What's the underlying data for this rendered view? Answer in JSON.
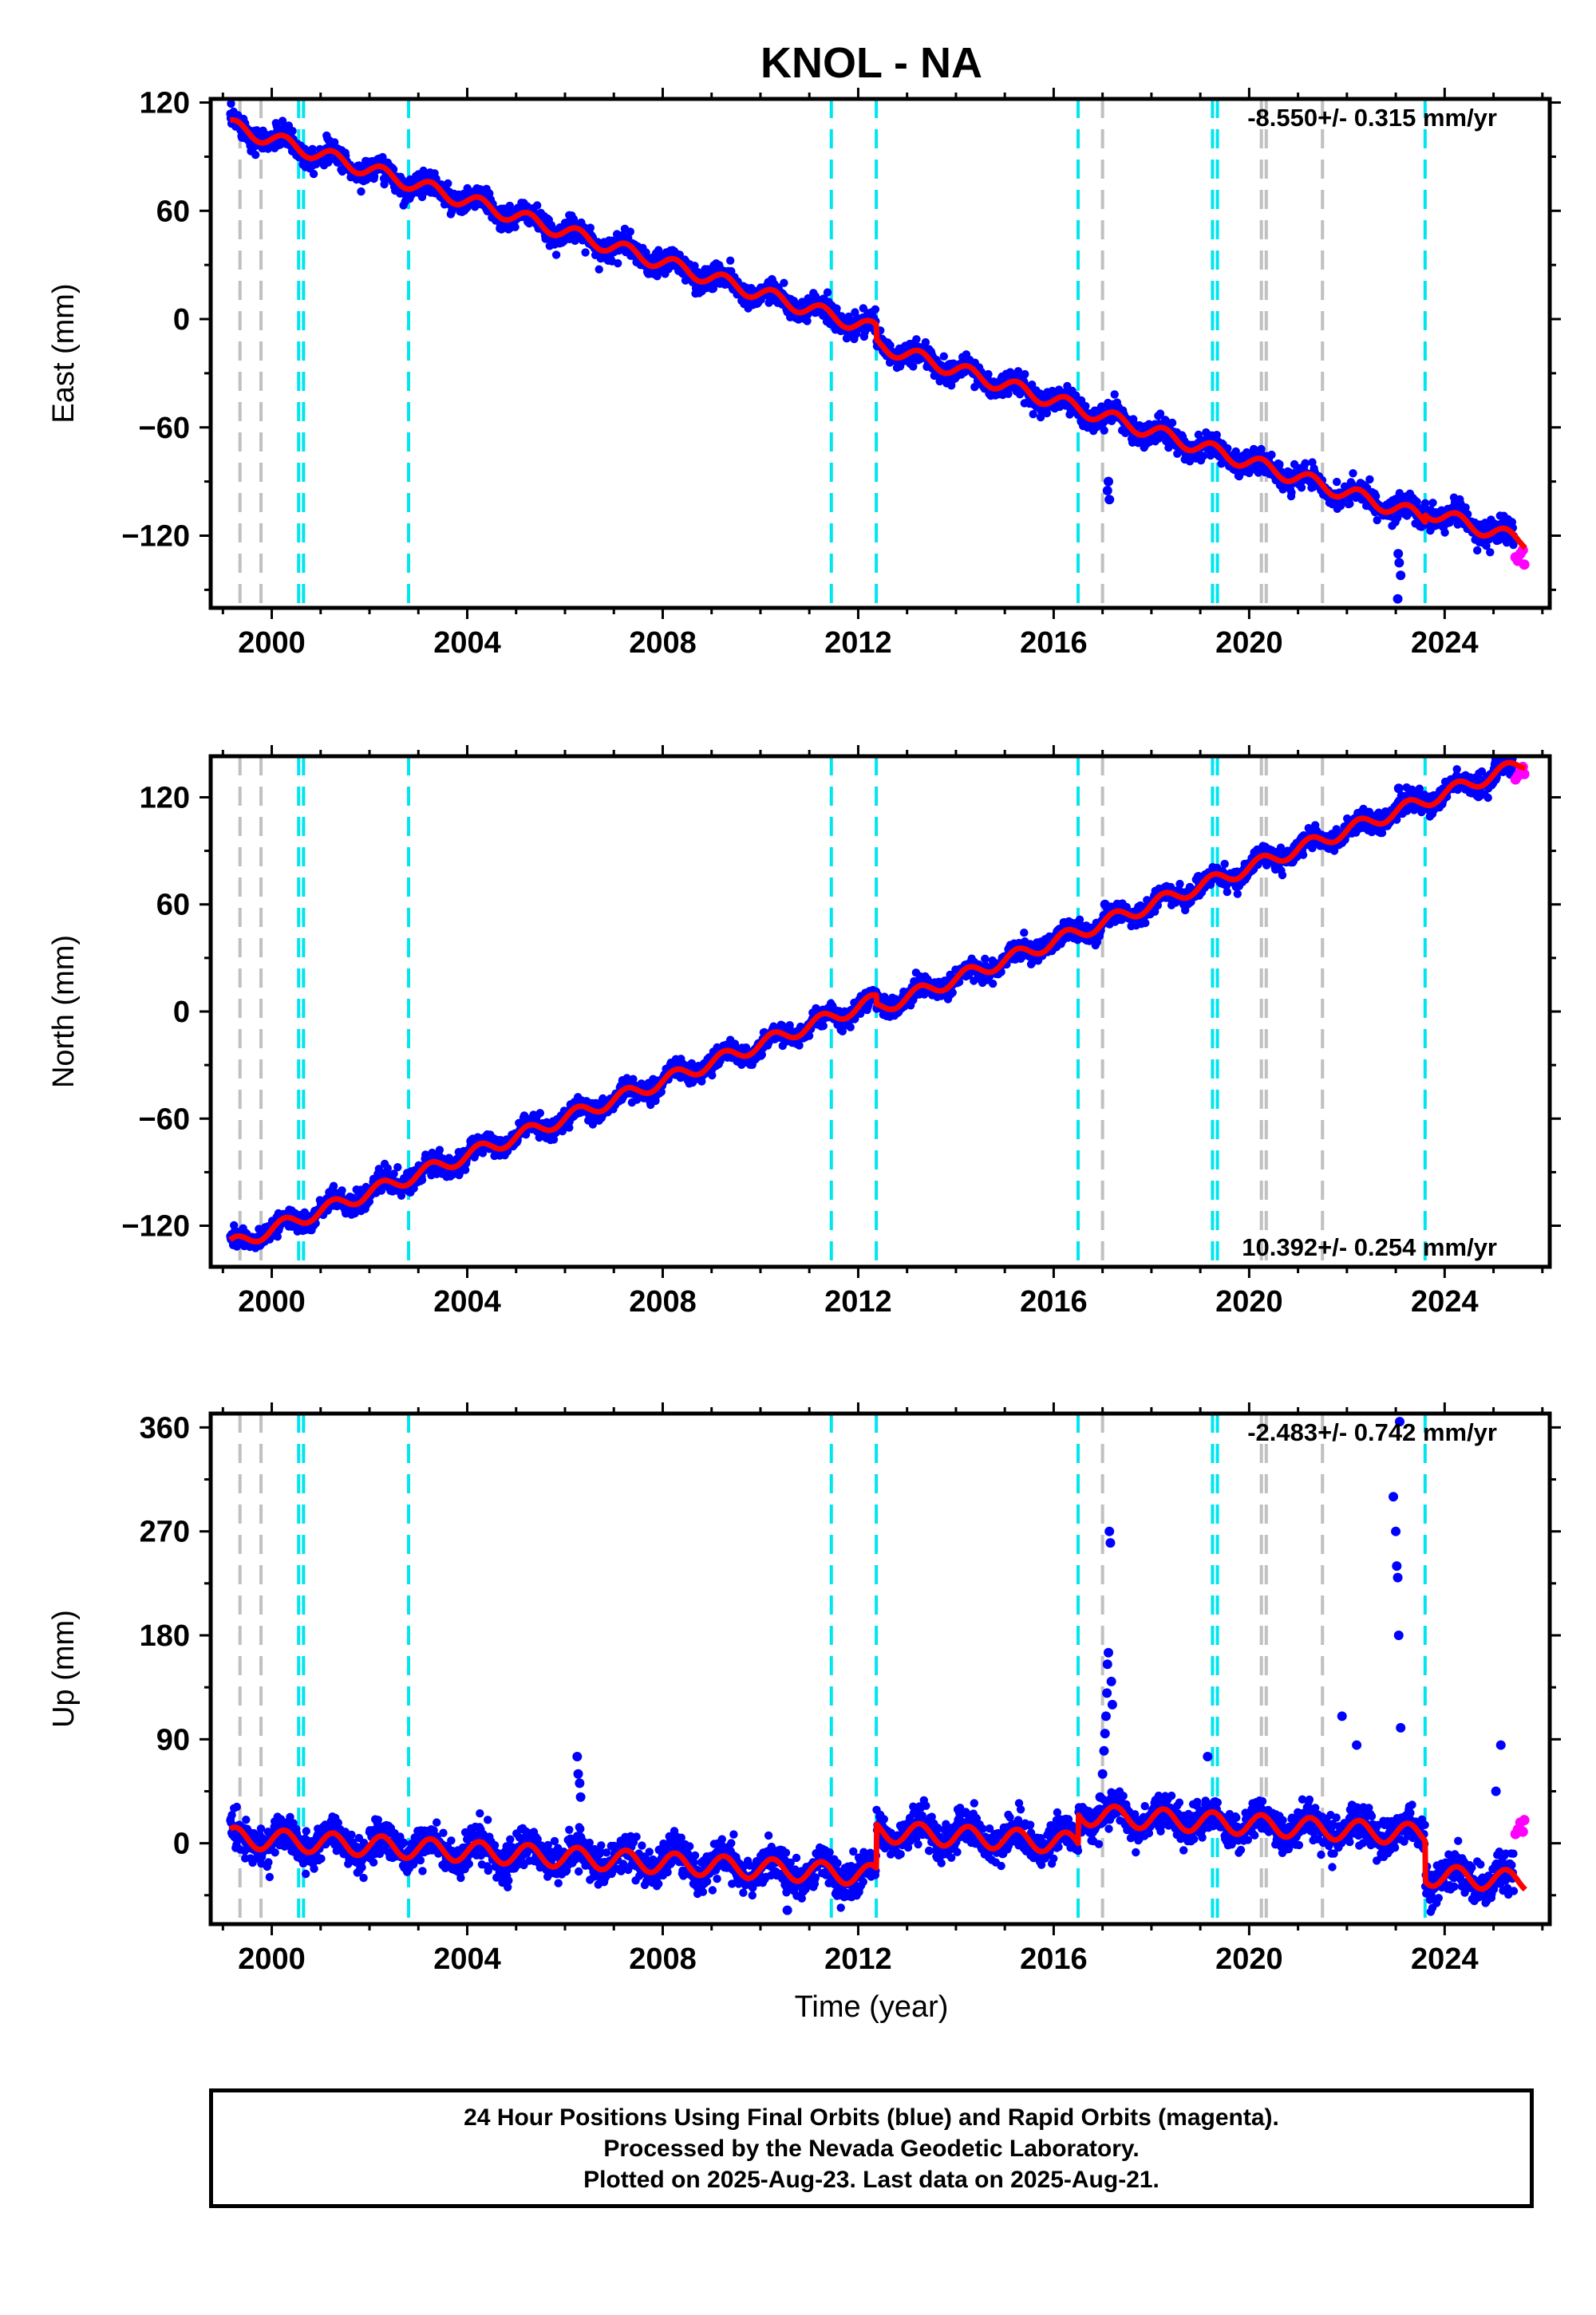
{
  "title": "KNOL - NA",
  "x_axis": {
    "label": "Time (year)",
    "range": [
      1998.75,
      2026.15
    ],
    "ticks": [
      2000,
      2004,
      2008,
      2012,
      2016,
      2020,
      2024
    ],
    "tick_labels": [
      "2000",
      "2004",
      "2008",
      "2012",
      "2016",
      "2020",
      "2024"
    ]
  },
  "event_lines": {
    "gray": [
      1999.35,
      1999.78,
      2017.0,
      2020.25,
      2020.35,
      2021.5
    ],
    "cyan": [
      2000.55,
      2000.65,
      2002.8,
      2011.45,
      2012.37,
      2016.5,
      2019.25,
      2019.35,
      2023.6
    ]
  },
  "colors": {
    "final_orbits": "#0000ff",
    "rapid_orbits": "#ff00ff",
    "model": "#ff0000",
    "gray_lines": "#c0c0c0",
    "cyan_lines": "#00e5ee"
  },
  "chart_data": [
    {
      "type": "scatter",
      "component": "east",
      "ylabel": "East (mm)",
      "ylim": [
        -160,
        122
      ],
      "yticks": [
        -120,
        -60,
        0,
        60,
        120
      ],
      "ytick_labels": [
        "-120",
        "-60",
        "0",
        "60",
        "120"
      ],
      "rate_text": "-8.550+/- 0.315 mm/yr",
      "rate_position": "top-right",
      "start_year": 1999.15,
      "end_year": 2025.65,
      "trend_start": 107,
      "trend_rate": -8.55,
      "seasonal_amplitude": 4.0,
      "noise": 3.2,
      "offsets": [
        {
          "year": 2012.37,
          "value": -8
        },
        {
          "year": 2023.6,
          "value": 4
        }
      ],
      "outliers": [
        [
          2017.1,
          -95
        ],
        [
          2017.12,
          -90
        ],
        [
          2017.14,
          -100
        ],
        [
          2023.0,
          -100
        ],
        [
          2023.02,
          -110
        ],
        [
          2023.05,
          -130
        ],
        [
          2023.07,
          -135
        ],
        [
          2023.1,
          -142
        ],
        [
          2023.04,
          -155
        ]
      ],
      "rapid_points": [
        [
          2025.45,
          -132
        ],
        [
          2025.5,
          -134
        ],
        [
          2025.55,
          -130
        ],
        [
          2025.6,
          -128
        ],
        [
          2025.63,
          -136
        ]
      ]
    },
    {
      "type": "scatter",
      "component": "north",
      "ylabel": "North (mm)",
      "ylim": [
        -143,
        143
      ],
      "yticks": [
        -120,
        -60,
        0,
        60,
        120
      ],
      "ytick_labels": [
        "-120",
        "-60",
        "0",
        "60",
        "120"
      ],
      "rate_text": "10.392+/- 0.254 mm/yr",
      "rate_position": "bottom-right",
      "start_year": 1999.15,
      "end_year": 2025.65,
      "trend_start": -131,
      "trend_rate": 10.392,
      "seasonal_amplitude": 3.8,
      "noise": 2.8,
      "offsets": [
        {
          "year": 2012.37,
          "value": -5
        }
      ],
      "outliers": [
        [
          2016.9,
          45
        ],
        [
          2017.0,
          50
        ],
        [
          2017.05,
          60
        ],
        [
          2017.1,
          55
        ],
        [
          2023.0,
          110
        ],
        [
          2023.03,
          115
        ],
        [
          2023.06,
          125
        ],
        [
          2023.08,
          118
        ]
      ],
      "rapid_points": [
        [
          2025.45,
          130
        ],
        [
          2025.5,
          132
        ],
        [
          2025.55,
          135
        ],
        [
          2025.6,
          137
        ],
        [
          2025.63,
          133
        ]
      ]
    },
    {
      "type": "scatter",
      "component": "up",
      "ylabel": "Up (mm)",
      "ylim": [
        -70,
        372
      ],
      "yticks": [
        0,
        90,
        180,
        270,
        360
      ],
      "ytick_labels": [
        "0",
        "90",
        "180",
        "270",
        "360"
      ],
      "rate_text": "-2.483+/- 0.742 mm/yr",
      "rate_position": "top-right",
      "start_year": 1999.15,
      "end_year": 2025.65,
      "trend_start": 5,
      "trend_rate": -2.483,
      "seasonal_amplitude": 9.0,
      "noise": 8.0,
      "offsets": [
        {
          "year": 2012.37,
          "value": 38
        },
        {
          "year": 2016.5,
          "value": 25
        },
        {
          "year": 2023.6,
          "value": -35
        }
      ],
      "outliers": [
        [
          2006.25,
          75
        ],
        [
          2006.27,
          60
        ],
        [
          2006.3,
          52
        ],
        [
          2006.32,
          40
        ],
        [
          2010.55,
          -58
        ],
        [
          2016.95,
          40
        ],
        [
          2017.0,
          60
        ],
        [
          2017.03,
          80
        ],
        [
          2017.05,
          95
        ],
        [
          2017.07,
          110
        ],
        [
          2017.09,
          130
        ],
        [
          2017.1,
          155
        ],
        [
          2017.12,
          165
        ],
        [
          2017.14,
          270
        ],
        [
          2017.16,
          260
        ],
        [
          2017.18,
          140
        ],
        [
          2017.2,
          120
        ],
        [
          2019.15,
          75
        ],
        [
          2021.9,
          110
        ],
        [
          2022.2,
          85
        ],
        [
          2022.95,
          300
        ],
        [
          2023.0,
          270
        ],
        [
          2023.02,
          240
        ],
        [
          2023.04,
          230
        ],
        [
          2023.06,
          180
        ],
        [
          2023.08,
          365
        ],
        [
          2023.1,
          100
        ],
        [
          2025.15,
          85
        ],
        [
          2025.05,
          45
        ]
      ],
      "rapid_points": [
        [
          2025.45,
          8
        ],
        [
          2025.5,
          12
        ],
        [
          2025.55,
          18
        ],
        [
          2025.6,
          10
        ],
        [
          2025.63,
          20
        ]
      ]
    }
  ],
  "footer": {
    "line1": "24 Hour Positions Using Final Orbits (blue) and Rapid Orbits (magenta).",
    "line2": "Processed by the Nevada Geodetic Laboratory.",
    "line3": "Plotted on 2025-Aug-23. Last data on 2025-Aug-21."
  }
}
